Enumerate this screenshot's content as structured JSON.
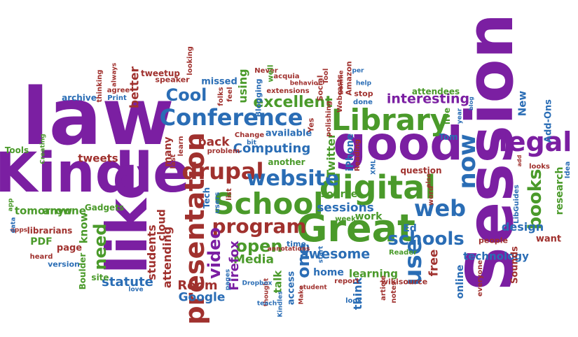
{
  "palette": {
    "purple": "#7b1fa2",
    "blue": "#2a6db5",
    "green": "#4a9a2a",
    "red": "#a0312e",
    "olive": "#6b7a2a"
  },
  "words": [
    {
      "text": "law",
      "color": "#7b1fa2"
    },
    {
      "text": "Kindle",
      "color": "#7b1fa2"
    },
    {
      "text": "Session",
      "color": "#7b1fa2"
    },
    {
      "text": "like",
      "color": "#7b1fa2"
    },
    {
      "text": "good",
      "color": "#7b1fa2"
    },
    {
      "text": "Great",
      "color": "#4a9a2a"
    },
    {
      "text": "School",
      "color": "#4a9a2a"
    },
    {
      "text": "Library",
      "color": "#4a9a2a"
    },
    {
      "text": "digital",
      "color": "#4a9a2a"
    },
    {
      "text": "Conference",
      "color": "#2a6db5"
    },
    {
      "text": "presentation",
      "color": "#a0312e"
    },
    {
      "text": "drupal",
      "color": "#a0312e"
    },
    {
      "text": "website",
      "color": "#2a6db5"
    },
    {
      "text": "legal",
      "color": "#7b1fa2"
    },
    {
      "text": "now",
      "color": "#2a6db5"
    },
    {
      "text": "use",
      "color": "#2a6db5"
    },
    {
      "text": "web",
      "color": "#2a6db5"
    },
    {
      "text": "Cool",
      "color": "#2a6db5"
    },
    {
      "text": "program",
      "color": "#a0312e"
    },
    {
      "text": "open",
      "color": "#4a9a2a"
    },
    {
      "text": "schools",
      "color": "#2a6db5"
    },
    {
      "text": "books",
      "color": "#4a9a2a"
    },
    {
      "text": "video",
      "color": "#7b1fa2"
    },
    {
      "text": "excellent",
      "color": "#4a9a2a"
    },
    {
      "text": "Computing",
      "color": "#2a6db5"
    },
    {
      "text": "interesting",
      "color": "#7b1fa2"
    },
    {
      "text": "awesome",
      "color": "#2a6db5"
    },
    {
      "text": "sessions",
      "color": "#2a6db5"
    },
    {
      "text": "one",
      "color": "#2a6db5"
    },
    {
      "text": "need",
      "color": "#4a9a2a"
    },
    {
      "text": "Room",
      "color": "#a0312e"
    },
    {
      "text": "statute",
      "color": "#2a6db5"
    },
    {
      "text": "Media",
      "color": "#4a9a2a"
    },
    {
      "text": "Firefox",
      "color": "#7b1fa2"
    },
    {
      "text": "Google",
      "color": "#2a6db5"
    },
    {
      "text": "Twitter",
      "color": "#4a9a2a"
    },
    {
      "text": "iPhone",
      "color": "#2a6db5"
    },
    {
      "text": "research",
      "color": "#4a9a2a"
    },
    {
      "text": "design",
      "color": "#2a6db5"
    },
    {
      "text": "technology",
      "color": "#2a6db5"
    },
    {
      "text": "attending",
      "color": "#a0312e"
    },
    {
      "text": "students",
      "color": "#a0312e"
    },
    {
      "text": "cloud",
      "color": "#a0312e"
    },
    {
      "text": "better",
      "color": "#a0312e"
    },
    {
      "text": "tweets",
      "color": "#a0312e"
    },
    {
      "text": "anyone",
      "color": "#4a9a2a"
    },
    {
      "text": "tomorrow",
      "color": "#4a9a2a"
    },
    {
      "text": "know",
      "color": "#4a9a2a"
    },
    {
      "text": "using",
      "color": "#4a9a2a"
    },
    {
      "text": "back",
      "color": "#a0312e"
    },
    {
      "text": "learning",
      "color": "#4a9a2a"
    },
    {
      "text": "home",
      "color": "#2a6db5"
    },
    {
      "text": "free",
      "color": "#a0312e"
    },
    {
      "text": "think",
      "color": "#2a6db5"
    },
    {
      "text": "talk",
      "color": "#4a9a2a"
    },
    {
      "text": "source",
      "color": "#4a9a2a"
    },
    {
      "text": "work",
      "color": "#4a9a2a"
    },
    {
      "text": "access",
      "color": "#2a6db5"
    },
    {
      "text": "many",
      "color": "#a0312e"
    },
    {
      "text": "New",
      "color": "#2a6db5"
    },
    {
      "text": "Ed",
      "color": "#2a6db5"
    },
    {
      "text": "online",
      "color": "#2a6db5"
    },
    {
      "text": "want",
      "color": "#a0312e"
    },
    {
      "text": "Sounds",
      "color": "#a0312e"
    },
    {
      "text": "available",
      "color": "#2a6db5"
    },
    {
      "text": "another",
      "color": "#4a9a2a"
    },
    {
      "text": "question",
      "color": "#a0312e"
    },
    {
      "text": "Tom",
      "color": "#2a6db5"
    },
    {
      "text": "live",
      "color": "#4a9a2a"
    },
    {
      "text": "attendees",
      "color": "#4a9a2a"
    },
    {
      "text": "Add-Ons",
      "color": "#2a6db5"
    },
    {
      "text": "missed",
      "color": "#2a6db5"
    },
    {
      "text": "tweetup",
      "color": "#a0312e"
    },
    {
      "text": "speaker",
      "color": "#a0312e"
    },
    {
      "text": "archive",
      "color": "#2a6db5"
    },
    {
      "text": "PDF",
      "color": "#4a9a2a"
    },
    {
      "text": "page",
      "color": "#a0312e"
    },
    {
      "text": "Tools",
      "color": "#4a9a2a"
    },
    {
      "text": "librarians",
      "color": "#a0312e"
    },
    {
      "text": "Gadgets",
      "color": "#4a9a2a"
    },
    {
      "text": "site",
      "color": "#4a9a2a"
    },
    {
      "text": "version",
      "color": "#2a6db5"
    },
    {
      "text": "people",
      "color": "#a0312e"
    },
    {
      "text": "wikisource",
      "color": "#a0312e"
    },
    {
      "text": "time",
      "color": "#2a6db5"
    },
    {
      "text": "Tech",
      "color": "#2a6db5"
    },
    {
      "text": "week",
      "color": "#4a9a2a"
    },
    {
      "text": "Boulder",
      "color": "#4a9a2a"
    },
    {
      "text": "Reading",
      "color": "#a0312e"
    },
    {
      "text": "Yes",
      "color": "#a0312e"
    },
    {
      "text": "polishing",
      "color": "#a0312e"
    },
    {
      "text": "Social",
      "color": "#a0312e"
    },
    {
      "text": "Webcasts",
      "color": "#a0312e"
    },
    {
      "text": "Amazon",
      "color": "#a0312e"
    },
    {
      "text": "stop",
      "color": "#a0312e"
    },
    {
      "text": "Never",
      "color": "#a0312e"
    },
    {
      "text": "acquia",
      "color": "#a0312e"
    },
    {
      "text": "Tool",
      "color": "#a0312e"
    },
    {
      "text": "extensions",
      "color": "#a0312e"
    },
    {
      "text": "well",
      "color": "#4a9a2a"
    },
    {
      "text": "Blogging",
      "color": "#2a6db5"
    },
    {
      "text": "feel",
      "color": "#a0312e"
    },
    {
      "text": "folks",
      "color": "#a0312e"
    },
    {
      "text": "Change",
      "color": "#a0312e"
    },
    {
      "text": "problem",
      "color": "#a0312e"
    },
    {
      "text": "bit",
      "color": "#2a6db5"
    },
    {
      "text": "Print",
      "color": "#2a6db5"
    },
    {
      "text": "agree",
      "color": "#a0312e"
    },
    {
      "text": "thinking",
      "color": "#a0312e"
    },
    {
      "text": "looking",
      "color": "#a0312e"
    },
    {
      "text": "learn",
      "color": "#a0312e"
    },
    {
      "text": "last",
      "color": "#a0312e"
    },
    {
      "text": "users",
      "color": "#2a6db5"
    },
    {
      "text": "list",
      "color": "#a0312e"
    },
    {
      "text": "annotations",
      "color": "#a0312e"
    },
    {
      "text": "XML",
      "color": "#2a6db5"
    },
    {
      "text": "also",
      "color": "#a0312e"
    },
    {
      "text": "word",
      "color": "#a0312e"
    },
    {
      "text": "Reader",
      "color": "#4a9a2a"
    },
    {
      "text": "LibGuides",
      "color": "#2a6db5"
    },
    {
      "text": "add",
      "color": "#a0312e"
    },
    {
      "text": "looks",
      "color": "#a0312e"
    },
    {
      "text": "Idea",
      "color": "#2a6db5"
    },
    {
      "text": "year",
      "color": "#2a6db5"
    },
    {
      "text": "blog",
      "color": "#2a6db5"
    },
    {
      "text": "done",
      "color": "#2a6db5"
    },
    {
      "text": "help",
      "color": "#2a6db5"
    },
    {
      "text": "per",
      "color": "#2a6db5"
    },
    {
      "text": "Bonnie",
      "color": "#a0312e"
    },
    {
      "text": "behavior",
      "color": "#a0312e"
    },
    {
      "text": "start",
      "color": "#2a6db5"
    },
    {
      "text": "report",
      "color": "#a0312e"
    },
    {
      "text": "article",
      "color": "#a0312e"
    },
    {
      "text": "notes",
      "color": "#a0312e"
    },
    {
      "text": "look",
      "color": "#2a6db5"
    },
    {
      "text": "everyone",
      "color": "#a0312e"
    },
    {
      "text": "student",
      "color": "#a0312e"
    },
    {
      "text": "Make",
      "color": "#a0312e"
    },
    {
      "text": "Kindles",
      "color": "#2a6db5"
    },
    {
      "text": "thought",
      "color": "#a0312e"
    },
    {
      "text": "teach",
      "color": "#2a6db5"
    },
    {
      "text": "Dropbox",
      "color": "#2a6db5"
    },
    {
      "text": "pages",
      "color": "#2a6db5"
    },
    {
      "text": "love",
      "color": "#2a6db5"
    },
    {
      "text": "heard",
      "color": "#a0312e"
    },
    {
      "text": "apps",
      "color": "#a0312e"
    },
    {
      "text": "data",
      "color": "#2a6db5"
    },
    {
      "text": "app",
      "color": "#4a9a2a"
    },
    {
      "text": "Creating",
      "color": "#4a9a2a"
    },
    {
      "text": "always",
      "color": "#a0312e"
    }
  ]
}
